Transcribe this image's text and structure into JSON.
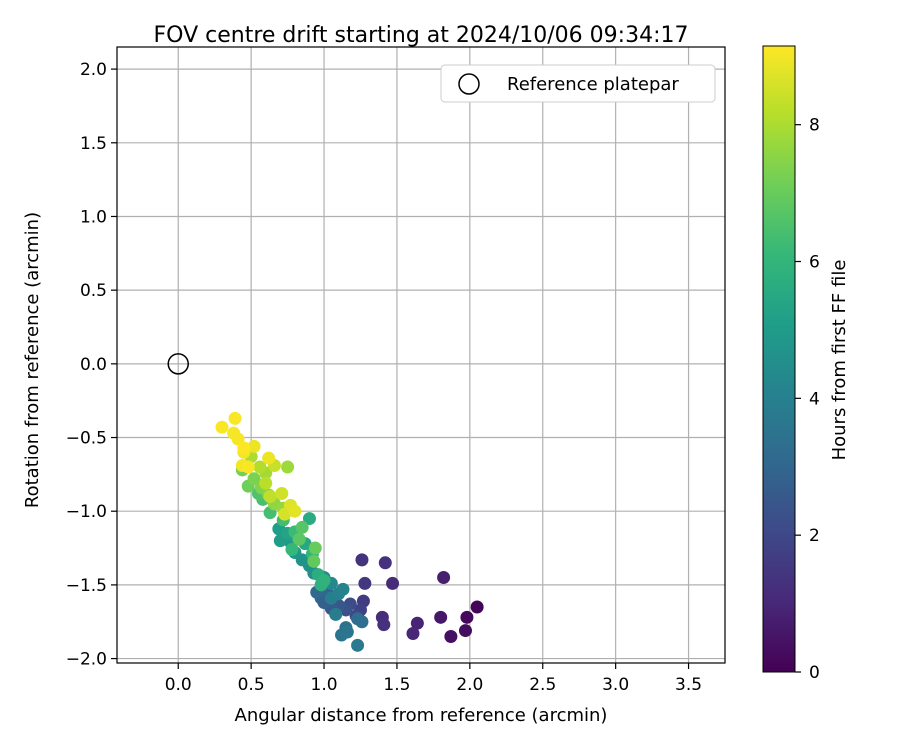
{
  "chart_data": {
    "type": "scatter",
    "title": "FOV centre drift starting at 2024/10/06 09:34:17",
    "xlabel": "Angular distance from reference (arcmin)",
    "ylabel": "Rotation from reference (arcmin)",
    "xlim": [
      -0.42,
      3.75
    ],
    "ylim": [
      -2.03,
      2.15
    ],
    "xticks": [
      0.0,
      0.5,
      1.0,
      1.5,
      2.0,
      2.5,
      3.0,
      3.5
    ],
    "xtick_labels": [
      "0.0",
      "0.5",
      "1.0",
      "1.5",
      "2.0",
      "2.5",
      "3.0",
      "3.5"
    ],
    "yticks": [
      -2.0,
      -1.5,
      -1.0,
      -0.5,
      0.0,
      0.5,
      1.0,
      1.5,
      2.0
    ],
    "ytick_labels": [
      "−2.0",
      "−1.5",
      "−1.0",
      "−0.5",
      "0.0",
      "0.5",
      "1.0",
      "1.5",
      "2.0"
    ],
    "grid": true,
    "legend": {
      "placement": "top-right",
      "entries": [
        "Reference platepar"
      ]
    },
    "reference": {
      "x": 0.0,
      "y": 0.0,
      "marker": "open-circle"
    },
    "colorbar": {
      "label": "Hours from first FF file",
      "range": [
        0,
        9.15
      ],
      "ticks": [
        0,
        2,
        4,
        6,
        8
      ],
      "tick_labels": [
        "0",
        "2",
        "4",
        "6",
        "8"
      ],
      "colormap": "viridis"
    },
    "colormap_stops": [
      "#440154",
      "#482878",
      "#3e4989",
      "#31688e",
      "#26828e",
      "#1f9e89",
      "#35b779",
      "#6ece58",
      "#b5de2b",
      "#fde725"
    ],
    "points": [
      {
        "x": 2.05,
        "y": -1.65,
        "h": 0.1
      },
      {
        "x": 1.98,
        "y": -1.72,
        "h": 0.2
      },
      {
        "x": 1.97,
        "y": -1.81,
        "h": 0.3
      },
      {
        "x": 1.87,
        "y": -1.85,
        "h": 0.4
      },
      {
        "x": 1.8,
        "y": -1.72,
        "h": 0.6
      },
      {
        "x": 1.82,
        "y": -1.45,
        "h": 0.8
      },
      {
        "x": 1.64,
        "y": -1.76,
        "h": 0.9
      },
      {
        "x": 1.61,
        "y": -1.83,
        "h": 1.0
      },
      {
        "x": 1.47,
        "y": -1.49,
        "h": 1.1
      },
      {
        "x": 1.4,
        "y": -1.72,
        "h": 1.2
      },
      {
        "x": 1.41,
        "y": -1.77,
        "h": 1.3
      },
      {
        "x": 1.42,
        "y": -1.35,
        "h": 1.3
      },
      {
        "x": 1.26,
        "y": -1.33,
        "h": 1.4
      },
      {
        "x": 1.28,
        "y": -1.49,
        "h": 1.5
      },
      {
        "x": 1.27,
        "y": -1.61,
        "h": 1.6
      },
      {
        "x": 1.25,
        "y": -1.67,
        "h": 1.8
      },
      {
        "x": 1.22,
        "y": -1.71,
        "h": 2.0
      },
      {
        "x": 1.18,
        "y": -1.63,
        "h": 2.1
      },
      {
        "x": 1.15,
        "y": -1.67,
        "h": 2.3
      },
      {
        "x": 1.1,
        "y": -1.64,
        "h": 2.5
      },
      {
        "x": 1.05,
        "y": -1.66,
        "h": 2.6
      },
      {
        "x": 1.0,
        "y": -1.62,
        "h": 2.8
      },
      {
        "x": 0.98,
        "y": -1.59,
        "h": 2.9
      },
      {
        "x": 1.02,
        "y": -1.55,
        "h": 3.0
      },
      {
        "x": 0.95,
        "y": -1.55,
        "h": 3.1
      },
      {
        "x": 1.23,
        "y": -1.73,
        "h": 3.2
      },
      {
        "x": 1.26,
        "y": -1.75,
        "h": 3.3
      },
      {
        "x": 1.15,
        "y": -1.79,
        "h": 3.4
      },
      {
        "x": 1.12,
        "y": -1.84,
        "h": 3.5
      },
      {
        "x": 1.16,
        "y": -1.82,
        "h": 3.6
      },
      {
        "x": 1.23,
        "y": -1.91,
        "h": 3.7
      },
      {
        "x": 1.08,
        "y": -1.7,
        "h": 3.8
      },
      {
        "x": 1.05,
        "y": -1.59,
        "h": 3.9
      },
      {
        "x": 1.1,
        "y": -1.56,
        "h": 4.0
      },
      {
        "x": 1.13,
        "y": -1.53,
        "h": 4.1
      },
      {
        "x": 1.05,
        "y": -1.49,
        "h": 4.3
      },
      {
        "x": 1.0,
        "y": -1.45,
        "h": 4.4
      },
      {
        "x": 0.93,
        "y": -1.42,
        "h": 4.5
      },
      {
        "x": 0.9,
        "y": -1.37,
        "h": 4.6
      },
      {
        "x": 0.85,
        "y": -1.33,
        "h": 4.7
      },
      {
        "x": 0.8,
        "y": -1.28,
        "h": 4.8
      },
      {
        "x": 0.77,
        "y": -1.21,
        "h": 4.9
      },
      {
        "x": 0.7,
        "y": -1.2,
        "h": 5.0
      },
      {
        "x": 0.69,
        "y": -1.12,
        "h": 5.1
      },
      {
        "x": 0.75,
        "y": -1.15,
        "h": 5.3
      },
      {
        "x": 0.82,
        "y": -1.19,
        "h": 5.4
      },
      {
        "x": 0.87,
        "y": -1.22,
        "h": 5.5
      },
      {
        "x": 0.9,
        "y": -1.05,
        "h": 5.6
      },
      {
        "x": 0.96,
        "y": -1.43,
        "h": 5.7
      },
      {
        "x": 0.98,
        "y": -1.5,
        "h": 5.8
      },
      {
        "x": 1.0,
        "y": -1.47,
        "h": 5.9
      },
      {
        "x": 0.92,
        "y": -1.29,
        "h": 6.0
      },
      {
        "x": 0.78,
        "y": -1.26,
        "h": 6.1
      },
      {
        "x": 0.8,
        "y": -1.14,
        "h": 6.2
      },
      {
        "x": 0.72,
        "y": -1.06,
        "h": 6.3
      },
      {
        "x": 0.63,
        "y": -1.01,
        "h": 6.4
      },
      {
        "x": 0.58,
        "y": -0.92,
        "h": 6.5
      },
      {
        "x": 0.55,
        "y": -0.88,
        "h": 6.6
      },
      {
        "x": 0.85,
        "y": -1.11,
        "h": 6.7
      },
      {
        "x": 0.83,
        "y": -1.19,
        "h": 6.8
      },
      {
        "x": 0.93,
        "y": -1.34,
        "h": 6.9
      },
      {
        "x": 0.94,
        "y": -1.25,
        "h": 7.0
      },
      {
        "x": 0.48,
        "y": -0.83,
        "h": 7.1
      },
      {
        "x": 0.44,
        "y": -0.72,
        "h": 7.2
      },
      {
        "x": 0.52,
        "y": -0.78,
        "h": 7.3
      },
      {
        "x": 0.57,
        "y": -0.84,
        "h": 7.4
      },
      {
        "x": 0.62,
        "y": -0.89,
        "h": 7.5
      },
      {
        "x": 0.66,
        "y": -0.95,
        "h": 7.6
      },
      {
        "x": 0.72,
        "y": -0.98,
        "h": 7.7
      },
      {
        "x": 0.75,
        "y": -0.7,
        "h": 7.8
      },
      {
        "x": 0.6,
        "y": -0.74,
        "h": 7.9
      },
      {
        "x": 0.5,
        "y": -0.63,
        "h": 8.0
      },
      {
        "x": 0.56,
        "y": -0.7,
        "h": 8.1
      },
      {
        "x": 0.6,
        "y": -0.81,
        "h": 8.2
      },
      {
        "x": 0.63,
        "y": -0.9,
        "h": 8.3
      },
      {
        "x": 0.66,
        "y": -0.69,
        "h": 8.4
      },
      {
        "x": 0.71,
        "y": -0.88,
        "h": 8.5
      },
      {
        "x": 0.73,
        "y": -1.02,
        "h": 8.6
      },
      {
        "x": 0.77,
        "y": -0.96,
        "h": 8.7
      },
      {
        "x": 0.8,
        "y": -1.0,
        "h": 8.8
      },
      {
        "x": 0.62,
        "y": -0.64,
        "h": 8.9
      },
      {
        "x": 0.52,
        "y": -0.56,
        "h": 8.9
      },
      {
        "x": 0.45,
        "y": -0.6,
        "h": 9.0
      },
      {
        "x": 0.44,
        "y": -0.69,
        "h": 9.0
      },
      {
        "x": 0.38,
        "y": -0.47,
        "h": 9.05
      },
      {
        "x": 0.41,
        "y": -0.51,
        "h": 9.05
      },
      {
        "x": 0.39,
        "y": -0.37,
        "h": 9.1
      },
      {
        "x": 0.3,
        "y": -0.43,
        "h": 9.1
      },
      {
        "x": 0.48,
        "y": -0.7,
        "h": 9.1
      },
      {
        "x": 0.45,
        "y": -0.57,
        "h": 9.15
      }
    ]
  }
}
